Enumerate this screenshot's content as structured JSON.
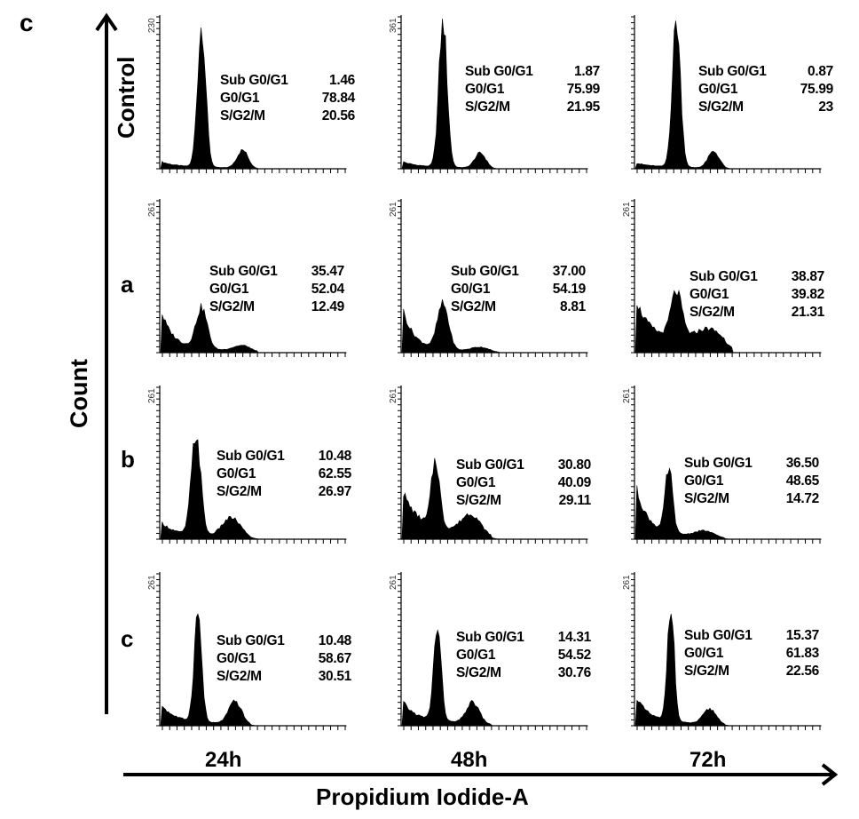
{
  "chart_data": {
    "type": "area",
    "panel_letter": "c",
    "ylabel": "Count",
    "xlabel": "Propidium Iodide-A",
    "time_points": [
      "24h",
      "48h",
      "72h"
    ],
    "rows": [
      "Control",
      "a",
      "b",
      "c"
    ],
    "stat_labels": [
      "Sub G0/G1",
      "G0/G1",
      "S/G2/M"
    ],
    "panels": [
      {
        "row": "Control",
        "time": "24h",
        "ymax_label": "230",
        "stats": {
          "Sub G0/G1": "1.46",
          "G0/G1": "78.84",
          "S/G2/M": "20.56"
        }
      },
      {
        "row": "Control",
        "time": "48h",
        "ymax_label": "361",
        "stats": {
          "Sub G0/G1": "1.87",
          "G0/G1": "75.99",
          "S/G2/M": "21.95"
        }
      },
      {
        "row": "Control",
        "time": "72h",
        "ymax_label": "",
        "stats": {
          "Sub G0/G1": "0.87",
          "G0/G1": "75.99",
          "S/G2/M": "23"
        }
      },
      {
        "row": "a",
        "time": "24h",
        "ymax_label": "261",
        "stats": {
          "Sub G0/G1": "35.47",
          "G0/G1": "52.04",
          "S/G2/M": "12.49"
        }
      },
      {
        "row": "a",
        "time": "48h",
        "ymax_label": "261",
        "stats": {
          "Sub G0/G1": "37.00",
          "G0/G1": "54.19",
          "S/G2/M": "8.81"
        }
      },
      {
        "row": "a",
        "time": "72h",
        "ymax_label": "261",
        "stats": {
          "Sub G0/G1": "38.87",
          "G0/G1": "39.82",
          "S/G2/M": "21.31"
        }
      },
      {
        "row": "b",
        "time": "24h",
        "ymax_label": "261",
        "stats": {
          "Sub G0/G1": "10.48",
          "G0/G1": "62.55",
          "S/G2/M": "26.97"
        }
      },
      {
        "row": "b",
        "time": "48h",
        "ymax_label": "261",
        "stats": {
          "Sub G0/G1": "30.80",
          "G0/G1": "40.09",
          "S/G2/M": "29.11"
        }
      },
      {
        "row": "b",
        "time": "72h",
        "ymax_label": "261",
        "stats": {
          "Sub G0/G1": "36.50",
          "G0/G1": "48.65",
          "S/G2/M": "14.72"
        }
      },
      {
        "row": "c",
        "time": "24h",
        "ymax_label": "261",
        "stats": {
          "Sub G0/G1": "10.48",
          "G0/G1": "58.67",
          "S/G2/M": "30.51"
        }
      },
      {
        "row": "c",
        "time": "48h",
        "ymax_label": "261",
        "stats": {
          "Sub G0/G1": "14.31",
          "G0/G1": "54.52",
          "S/G2/M": "30.76"
        }
      },
      {
        "row": "c",
        "time": "72h",
        "ymax_label": "261",
        "stats": {
          "Sub G0/G1": "15.37",
          "G0/G1": "61.83",
          "S/G2/M": "22.56"
        }
      }
    ],
    "histogram_shapes": [
      {
        "sub": 0.03,
        "g1_peak": 0.94,
        "g1_pos": 0.22,
        "g1_w": 0.022,
        "g2_peak": 0.12,
        "g2_pos": 0.44,
        "g2_w": 0.03,
        "floor": 0.02
      },
      {
        "sub": 0.03,
        "g1_peak": 0.97,
        "g1_pos": 0.22,
        "g1_w": 0.022,
        "g2_peak": 0.1,
        "g2_pos": 0.42,
        "g2_w": 0.03,
        "floor": 0.02
      },
      {
        "sub": 0.02,
        "g1_peak": 0.97,
        "g1_pos": 0.22,
        "g1_w": 0.022,
        "g2_peak": 0.11,
        "g2_pos": 0.42,
        "g2_w": 0.03,
        "floor": 0.02
      },
      {
        "sub": 0.25,
        "g1_peak": 0.27,
        "g1_pos": 0.22,
        "g1_w": 0.03,
        "g2_peak": 0.04,
        "g2_pos": 0.44,
        "g2_w": 0.05,
        "floor": 0.04
      },
      {
        "sub": 0.28,
        "g1_peak": 0.3,
        "g1_pos": 0.22,
        "g1_w": 0.03,
        "g2_peak": 0.03,
        "g2_pos": 0.42,
        "g2_w": 0.05,
        "floor": 0.03
      },
      {
        "sub": 0.23,
        "g1_peak": 0.31,
        "g1_pos": 0.22,
        "g1_w": 0.03,
        "g2_peak": 0.12,
        "g2_pos": 0.4,
        "g2_w": 0.08,
        "floor": 0.14
      },
      {
        "sub": 0.08,
        "g1_peak": 0.67,
        "g1_pos": 0.19,
        "g1_w": 0.025,
        "g2_peak": 0.13,
        "g2_pos": 0.38,
        "g2_w": 0.05,
        "floor": 0.04
      },
      {
        "sub": 0.22,
        "g1_peak": 0.44,
        "g1_pos": 0.18,
        "g1_w": 0.022,
        "g2_peak": 0.13,
        "g2_pos": 0.37,
        "g2_w": 0.05,
        "floor": 0.12
      },
      {
        "sub": 0.32,
        "g1_peak": 0.42,
        "g1_pos": 0.18,
        "g1_w": 0.02,
        "g2_peak": 0.04,
        "g2_pos": 0.37,
        "g2_w": 0.05,
        "floor": 0.05
      },
      {
        "sub": 0.11,
        "g1_peak": 0.72,
        "g1_pos": 0.2,
        "g1_w": 0.02,
        "g2_peak": 0.15,
        "g2_pos": 0.4,
        "g2_w": 0.035,
        "floor": 0.04
      },
      {
        "sub": 0.12,
        "g1_peak": 0.62,
        "g1_pos": 0.19,
        "g1_w": 0.02,
        "g2_peak": 0.14,
        "g2_pos": 0.38,
        "g2_w": 0.035,
        "floor": 0.05
      },
      {
        "sub": 0.17,
        "g1_peak": 0.79,
        "g1_pos": 0.19,
        "g1_w": 0.018,
        "g2_peak": 0.1,
        "g2_pos": 0.4,
        "g2_w": 0.035,
        "floor": 0.04
      }
    ]
  }
}
